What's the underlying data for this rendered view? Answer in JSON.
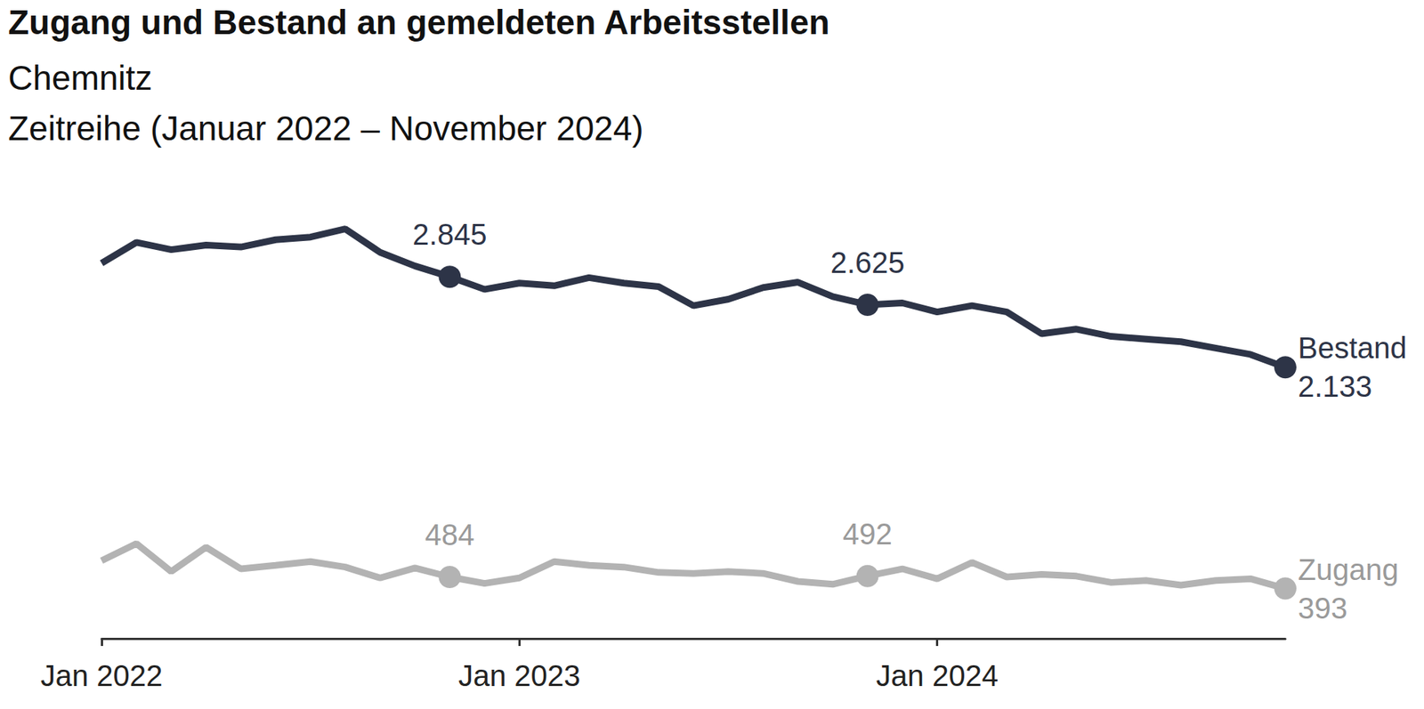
{
  "chart_data": {
    "type": "line",
    "title": "Zugang und Bestand an gemeldeten Arbeitsstellen",
    "subtitle": [
      "Chemnitz",
      "Zeitreihe (Januar 2022 – November 2024)"
    ],
    "categories": [
      "Jan 2022",
      null,
      null,
      null,
      null,
      null,
      null,
      null,
      null,
      null,
      null,
      null,
      "Jan 2023",
      null,
      null,
      null,
      null,
      null,
      null,
      null,
      null,
      null,
      null,
      null,
      "Jan 2024",
      null,
      null,
      null,
      null,
      null,
      null,
      null,
      null,
      null,
      null
    ],
    "series": [
      {
        "name": "Bestand",
        "color": "#2d3447",
        "values": [
          2952,
          3115,
          3058,
          3094,
          3079,
          3136,
          3157,
          3221,
          3037,
          2930,
          2845,
          2746,
          2795,
          2774,
          2838,
          2795,
          2767,
          2618,
          2668,
          2760,
          2802,
          2689,
          2625,
          2639,
          2568,
          2618,
          2568,
          2397,
          2433,
          2376,
          2355,
          2334,
          2284,
          2234,
          2133
        ],
        "value_labels": [
          null,
          null,
          null,
          null,
          null,
          null,
          null,
          null,
          null,
          null,
          "2.845",
          null,
          null,
          null,
          null,
          null,
          null,
          null,
          null,
          null,
          null,
          null,
          "2.625",
          null,
          null,
          null,
          null,
          null,
          null,
          null,
          null,
          null,
          null,
          null,
          "2.133"
        ]
      },
      {
        "name": "Zugang",
        "color": "#b3b3b3",
        "values": [
          612,
          747,
          527,
          718,
          548,
          576,
          605,
          562,
          477,
          555,
          484,
          434,
          477,
          605,
          576,
          562,
          520,
          512,
          527,
          512,
          449,
          427,
          492,
          548,
          470,
          598,
          484,
          505,
          491,
          441,
          456,
          420,
          456,
          470,
          393
        ],
        "value_labels": [
          null,
          null,
          null,
          null,
          null,
          null,
          null,
          null,
          null,
          null,
          "484",
          null,
          null,
          null,
          null,
          null,
          null,
          null,
          null,
          null,
          null,
          null,
          "492",
          null,
          null,
          null,
          null,
          null,
          null,
          null,
          null,
          null,
          null,
          null,
          "393"
        ]
      }
    ],
    "ylim": [
      0,
      3400
    ],
    "grid": false,
    "tick_labels": "x",
    "data_labels": true
  }
}
